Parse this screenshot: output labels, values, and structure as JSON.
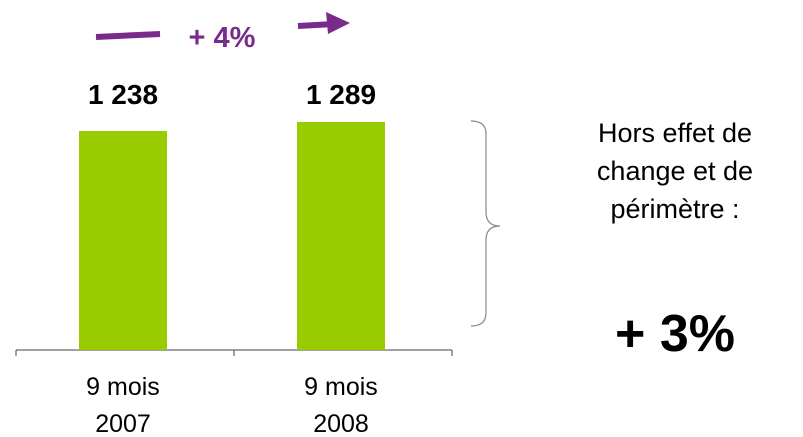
{
  "chart_data": {
    "type": "bar",
    "categories": [
      [
        "9 mois",
        "2007"
      ],
      [
        "9 mois",
        "2008"
      ]
    ],
    "values": [
      1238,
      1289
    ],
    "value_labels": [
      "1 238",
      "1 289"
    ],
    "ylim": [
      0,
      1289
    ],
    "bar_color": "#99cc00",
    "growth_label": "+ 4%",
    "growth_color": "#7a2a8a",
    "grid": false
  },
  "annotation": {
    "lines": [
      "Hors effet de",
      "change et de",
      "périmètre :"
    ],
    "value": "+ 3%"
  }
}
